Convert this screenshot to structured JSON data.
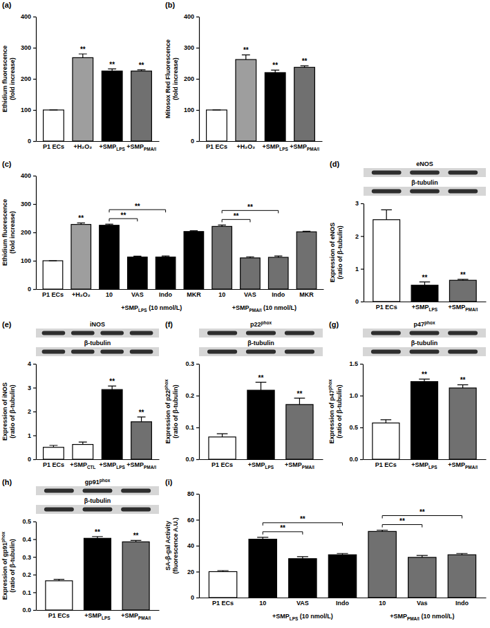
{
  "chart_data": [
    {
      "type": "bar",
      "title": "(a)",
      "ylabel": [
        "Ethidium fluorescence",
        "(fold increase)"
      ],
      "categories": [
        "P1 ECs",
        "+H₂O₂",
        "+SMPLPS",
        "+SMPPMA/I"
      ],
      "values": [
        100,
        268,
        225,
        225
      ],
      "errors": [
        0,
        12,
        7,
        4
      ],
      "colors": [
        "#ffffff",
        "#9e9e9e",
        "#000000",
        "#707070"
      ],
      "ylim": [
        0,
        400
      ],
      "yticks": [
        0,
        100,
        200,
        300,
        400
      ],
      "significance": [
        {
          "index": 1,
          "label": "**"
        },
        {
          "index": 2,
          "label": "**"
        },
        {
          "index": 3,
          "label": "**"
        }
      ]
    },
    {
      "type": "bar",
      "title": "(b)",
      "ylabel": [
        "Mitosox Red Fluorescence",
        "(fold increase)"
      ],
      "categories": [
        "P1 ECs",
        "+H₂O₂",
        "+SMPLPS",
        "+SMPPMA/I"
      ],
      "values": [
        100,
        262,
        220,
        237
      ],
      "errors": [
        0,
        15,
        8,
        5
      ],
      "colors": [
        "#ffffff",
        "#9e9e9e",
        "#000000",
        "#707070"
      ],
      "ylim": [
        0,
        400
      ],
      "yticks": [
        0,
        100,
        200,
        300,
        400
      ],
      "significance": [
        {
          "index": 1,
          "label": "**"
        },
        {
          "index": 2,
          "label": "**"
        },
        {
          "index": 3,
          "label": "**"
        }
      ]
    },
    {
      "type": "bar",
      "title": "(c)",
      "ylabel": [
        "Ethidium fluorescence",
        "(fold increase)"
      ],
      "categories": [
        "P1 ECs",
        "+H₂O₂",
        "10",
        "VAS",
        "Indo",
        "MKR",
        "10",
        "VAS",
        "Indo",
        "MKR"
      ],
      "values": [
        100,
        228,
        225,
        113,
        113,
        203,
        221,
        110,
        112,
        202
      ],
      "errors": [
        0,
        5,
        4,
        3,
        4,
        3,
        5,
        4,
        5,
        2
      ],
      "colors": [
        "#ffffff",
        "#9e9e9e",
        "#000000",
        "#000000",
        "#000000",
        "#000000",
        "#707070",
        "#707070",
        "#707070",
        "#707070"
      ],
      "ylim": [
        0,
        400
      ],
      "yticks": [
        0,
        100,
        200,
        300,
        400
      ],
      "significance": [
        {
          "index": 1,
          "label": "**"
        }
      ],
      "brackets": [
        {
          "from": 2,
          "to": 3,
          "label": "**"
        },
        {
          "from": 2,
          "to": 4,
          "label": "**"
        },
        {
          "from": 6,
          "to": 7,
          "label": "**"
        },
        {
          "from": 6,
          "to": 8,
          "label": "**"
        }
      ],
      "groups": [
        {
          "label": "+SMPLPS (10 nmol/L)",
          "from": 2,
          "to": 5
        },
        {
          "label": "+SMPPMA/I (10 nmol/L)",
          "from": 6,
          "to": 9
        }
      ]
    },
    {
      "type": "bar",
      "title": "(d)",
      "ylabel": [
        "Expression of eNOS",
        "(ratio of β-tubulin)"
      ],
      "blot_labels": [
        "eNOS",
        "β-tubulin"
      ],
      "categories": [
        "P1 ECs",
        "+SMPLPS",
        "+SMPPMA/I"
      ],
      "values": [
        2.5,
        0.5,
        0.65
      ],
      "errors": [
        0.3,
        0.1,
        0.03
      ],
      "colors": [
        "#ffffff",
        "#000000",
        "#707070"
      ],
      "ylim": [
        0,
        3
      ],
      "yticks": [
        0,
        1,
        2,
        3
      ],
      "significance": [
        {
          "index": 1,
          "label": "**"
        },
        {
          "index": 2,
          "label": "**"
        }
      ]
    },
    {
      "type": "bar",
      "title": "(e)",
      "ylabel": [
        "Expression of iNOS",
        "(ratio of β-tubulin)"
      ],
      "blot_labels": [
        "iNOS",
        "β-tubulin"
      ],
      "categories": [
        "P1 ECs",
        "+SMPCTL",
        "+SMPLPS",
        "+SMPPMA/I"
      ],
      "values": [
        0.5,
        0.62,
        2.92,
        1.57
      ],
      "errors": [
        0.08,
        0.1,
        0.15,
        0.2
      ],
      "colors": [
        "#ffffff",
        "#ffffff",
        "#000000",
        "#707070"
      ],
      "ylim": [
        0,
        4
      ],
      "yticks": [
        0,
        1,
        2,
        3,
        4
      ],
      "significance": [
        {
          "index": 2,
          "label": "**"
        },
        {
          "index": 3,
          "label": "**"
        }
      ]
    },
    {
      "type": "bar",
      "title": "(f)",
      "ylabel": [
        "Expression of p22phox",
        "(ratio of β-tubulin)"
      ],
      "blot_labels": [
        "p22phox",
        "β-tubulin"
      ],
      "categories": [
        "P1 ECs",
        "+SMPLPS",
        "+SMPPMA/I"
      ],
      "values": [
        0.07,
        0.217,
        0.172
      ],
      "errors": [
        0.01,
        0.025,
        0.02
      ],
      "colors": [
        "#ffffff",
        "#000000",
        "#707070"
      ],
      "ylim": [
        0,
        0.3
      ],
      "yticks": [
        {
          "value": 0,
          "label": "0.0"
        },
        0.1,
        0.2,
        0.3
      ],
      "significance": [
        {
          "index": 1,
          "label": "**"
        },
        {
          "index": 2,
          "label": "**"
        }
      ]
    },
    {
      "type": "bar",
      "title": "(g)",
      "ylabel": [
        "Expression of p47phox",
        "(ratio of β-tubulin)"
      ],
      "blot_labels": [
        "p47phox",
        "β-tubulin"
      ],
      "categories": [
        "P1 ECs",
        "+SMPLPS",
        "+SMPPMA/I"
      ],
      "values": [
        0.57,
        1.22,
        1.12
      ],
      "errors": [
        0.05,
        0.04,
        0.05
      ],
      "colors": [
        "#ffffff",
        "#000000",
        "#707070"
      ],
      "ylim": [
        0,
        1.5
      ],
      "yticks": [
        {
          "value": 0,
          "label": "0.0"
        },
        0.5,
        {
          "value": 1,
          "label": "1.0"
        },
        1.5
      ],
      "significance": [
        {
          "index": 1,
          "label": "**"
        },
        {
          "index": 2,
          "label": "**"
        }
      ]
    },
    {
      "type": "bar",
      "title": "(h)",
      "ylabel": [
        "Expression of gp91phox",
        "(ratio of β-tubulin)"
      ],
      "blot_labels": [
        "gp91phox",
        "β-tubulin"
      ],
      "categories": [
        "P1 ECs",
        "+SMPLPS",
        "+SMPPMA/I"
      ],
      "values": [
        0.165,
        0.405,
        0.385
      ],
      "errors": [
        0.008,
        0.01,
        0.008
      ],
      "colors": [
        "#ffffff",
        "#000000",
        "#707070"
      ],
      "ylim": [
        0,
        0.5
      ],
      "yticks": [
        {
          "value": 0,
          "label": "0.0"
        },
        0.1,
        0.2,
        0.3,
        0.4,
        0.5
      ],
      "significance": [
        {
          "index": 1,
          "label": "**"
        },
        {
          "index": 2,
          "label": "**"
        }
      ]
    },
    {
      "type": "bar",
      "title": "(i)",
      "ylabel": [
        "SA-β-gal Activity",
        "(fluorescence A.U.)"
      ],
      "categories": [
        "P1 ECs",
        "10",
        "VAS",
        "Indo",
        "10",
        "Vas",
        "Indo"
      ],
      "values": [
        20,
        45,
        30,
        33,
        51,
        31,
        33
      ],
      "errors": [
        0.8,
        1.5,
        1.5,
        1,
        1,
        1.5,
        1
      ],
      "colors": [
        "#ffffff",
        "#000000",
        "#000000",
        "#000000",
        "#707070",
        "#707070",
        "#707070"
      ],
      "ylim": [
        0,
        80
      ],
      "yticks": [
        0,
        20,
        40,
        60,
        80
      ],
      "brackets": [
        {
          "from": 1,
          "to": 2,
          "label": "**"
        },
        {
          "from": 1,
          "to": 3,
          "label": "**"
        },
        {
          "from": 4,
          "to": 5,
          "label": "**"
        },
        {
          "from": 4,
          "to": 6,
          "label": "**"
        }
      ],
      "groups": [
        {
          "label": "+SMPLPS (10 nmol/L)",
          "from": 1,
          "to": 3
        },
        {
          "label": "+SMPPMA/I (10 nmol/L)",
          "from": 4,
          "to": 6
        }
      ]
    }
  ]
}
